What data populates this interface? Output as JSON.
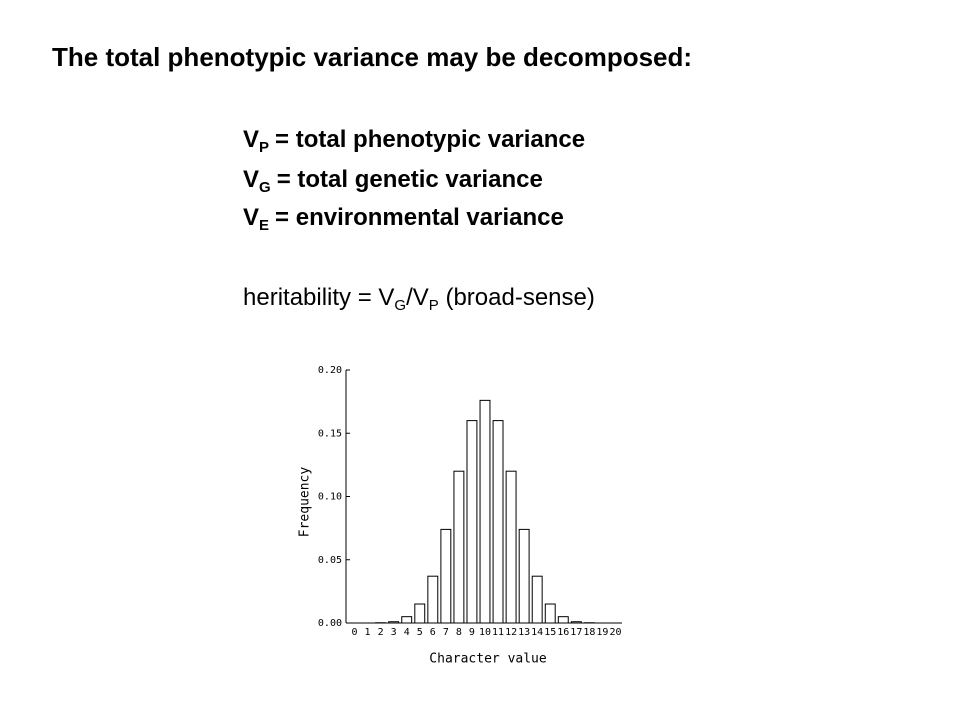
{
  "title": "The total phenotypic variance may be decomposed:",
  "definitions": [
    {
      "symbol": "V",
      "sub": "P",
      "text": "= total phenotypic variance"
    },
    {
      "symbol": "V",
      "sub": "G",
      "text": "= total genetic variance"
    },
    {
      "symbol": "V",
      "sub": "E",
      "text": "= environmental variance"
    }
  ],
  "heritability": {
    "prefix": "heritability = V",
    "sub1": "G",
    "middle": "/V",
    "sub2": "P",
    "suffix": "(broad-sense)"
  },
  "chart_data": {
    "type": "bar",
    "categories": [
      "0",
      "1",
      "2",
      "3",
      "4",
      "5",
      "6",
      "7",
      "8",
      "9",
      "10",
      "11",
      "12",
      "13",
      "14",
      "15",
      "16",
      "17",
      "18",
      "19",
      "20"
    ],
    "values": [
      0,
      0,
      0.0002,
      0.001,
      0.005,
      0.015,
      0.037,
      0.074,
      0.12,
      0.16,
      0.176,
      0.16,
      0.12,
      0.074,
      0.037,
      0.015,
      0.005,
      0.001,
      0.0002,
      0,
      0
    ],
    "color": "#ffffff",
    "ylim": [
      0,
      0.2
    ],
    "yticks": [
      {
        "value": 0,
        "label": "0.00"
      },
      {
        "value": 0.05,
        "label": "0.05"
      },
      {
        "value": 0.1,
        "label": "0.10"
      },
      {
        "value": 0.15,
        "label": "0.15"
      },
      {
        "value": 0.2,
        "label": "0.20"
      }
    ],
    "xlabel": "Character value",
    "ylabel": "Frequency"
  }
}
